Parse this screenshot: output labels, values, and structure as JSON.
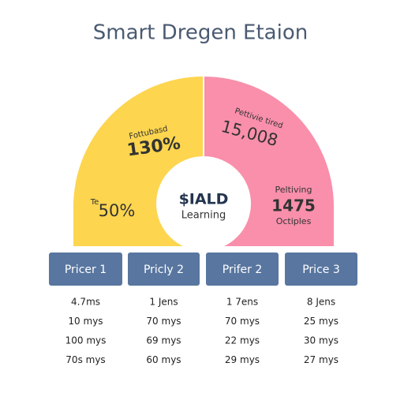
{
  "title": "Smart Dregen Etaion",
  "segments": [
    {
      "label": "Fottubasd",
      "value": "130%"
    },
    {
      "label": "Te",
      "value": "50%"
    },
    {
      "label": "Pettivie tired",
      "value": "15,008"
    },
    {
      "label": "Peltiving",
      "value": "1475",
      "sublabel": "Octiples"
    }
  ],
  "center": {
    "value": "$IALD",
    "label": "Learning"
  },
  "table": {
    "headers": [
      "Pricer 1",
      "Pricly 2",
      "Prifer 2",
      "Price 3"
    ],
    "rows": [
      [
        "4.7ms",
        "1 Jens",
        "1 7ens",
        "8 Jens"
      ],
      [
        "10 mys",
        "70 mys",
        "70 mys",
        "25 mys"
      ],
      [
        "100 mys",
        "69 mys",
        "22 mys",
        "30 mys"
      ],
      [
        "70s mys",
        "60 mys",
        "29 mys",
        "27 mys"
      ]
    ]
  }
}
